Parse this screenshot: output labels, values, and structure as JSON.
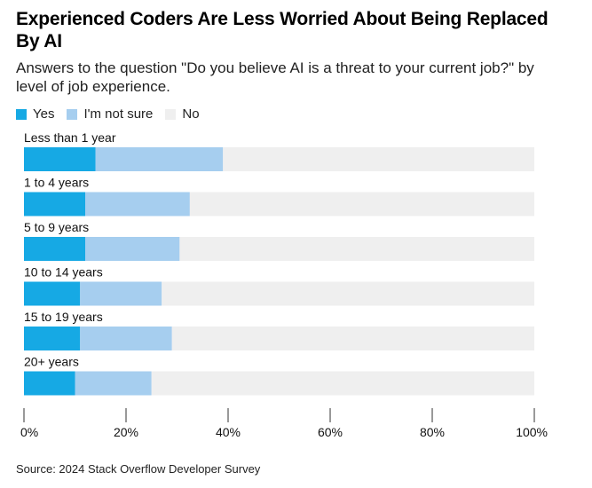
{
  "header": {
    "title": "Experienced Coders Are Less Worried About Being Replaced By AI",
    "subtitle": "Answers to the question \"Do you believe AI is a threat to your current job?\" by level of job experience."
  },
  "colors": {
    "yes": "#16a9e4",
    "not_sure": "#a6ceef",
    "no": "#efefef",
    "axis": "#333333"
  },
  "legend": [
    {
      "label": "Yes",
      "color": "#16a9e4"
    },
    {
      "label": "I'm not sure",
      "color": "#a6ceef"
    },
    {
      "label": "No",
      "color": "#efefef"
    }
  ],
  "footer": {
    "source": "Source: 2024 Stack Overflow Developer Survey"
  },
  "chart_data": {
    "type": "bar",
    "orientation": "horizontal",
    "stacked": true,
    "title": "Experienced Coders Are Less Worried About Being Replaced By AI",
    "categories": [
      "Less than 1 year",
      "1 to 4 years",
      "5 to 9 years",
      "10 to 14 years",
      "15 to 19 years",
      "20+ years"
    ],
    "series": [
      {
        "name": "Yes",
        "values": [
          14,
          12,
          12,
          11,
          11,
          10
        ]
      },
      {
        "name": "I'm not sure",
        "values": [
          25,
          20.5,
          18.5,
          16,
          18,
          15
        ]
      },
      {
        "name": "No",
        "values": [
          61,
          67.5,
          69.5,
          73,
          71,
          75
        ]
      }
    ],
    "xlim": [
      0,
      100
    ],
    "xticks": [
      "0%",
      "20%",
      "40%",
      "60%",
      "80%",
      "100%"
    ],
    "xlabel": "",
    "ylabel": "",
    "legend_position": "top-left"
  }
}
